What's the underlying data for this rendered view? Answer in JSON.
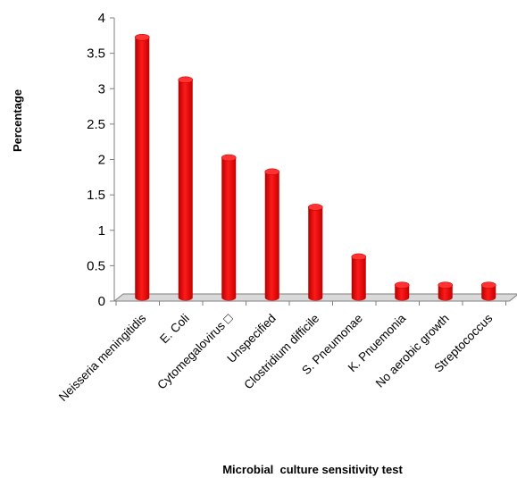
{
  "chart_data": {
    "type": "bar",
    "title": "",
    "xlabel": "Microbial  culture sensitivity test",
    "ylabel": "Percentage",
    "ylim": [
      0,
      4
    ],
    "yticks": [
      "0",
      "0.5",
      "1",
      "1.5",
      "2",
      "2.5",
      "3",
      "3.5",
      "4"
    ],
    "grid": false,
    "legend": "none",
    "bar_color": "#ee0000",
    "categories": [
      "Neisseria meningitidis",
      "E. Coli",
      "Cytomegalovirus □",
      "Unspecified",
      "Clostridium difficile",
      "S. Pneumonae",
      "K. Pnuemonia",
      "No aerobic growth",
      "Streptococcus"
    ],
    "values": [
      3.7,
      3.1,
      2.0,
      1.8,
      1.3,
      0.6,
      0.2,
      0.2,
      0.2
    ]
  }
}
